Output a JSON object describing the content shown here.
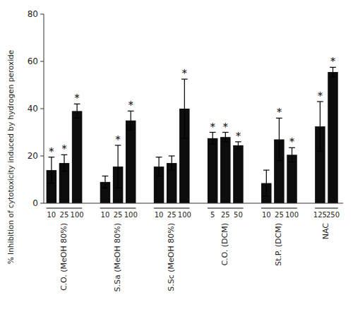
{
  "chart_data": {
    "type": "bar",
    "ylabel": "% Inhibition of cytotoxicity induced by hydrogen peroxide",
    "ylim": [
      0,
      80
    ],
    "yticks": [
      0,
      20,
      40,
      60,
      80
    ],
    "grid": false,
    "color": "#0d0d0d",
    "significance_mark": "*",
    "groups": [
      {
        "label": "C.O. (MeOH 80%)",
        "categories": [
          "10",
          "25",
          "100"
        ],
        "values": [
          14.0,
          17.0,
          39.0
        ],
        "errors": [
          5.5,
          3.5,
          3.0
        ],
        "significant": [
          true,
          true,
          true
        ]
      },
      {
        "label": "S.Sa (MeOH 80%)",
        "categories": [
          "10",
          "25",
          "100"
        ],
        "values": [
          9.0,
          15.5,
          35.0
        ],
        "errors": [
          2.5,
          9.0,
          4.0
        ],
        "significant": [
          false,
          true,
          true
        ]
      },
      {
        "label": "S.Sc (MeOH 80%)",
        "categories": [
          "10",
          "25",
          "100"
        ],
        "values": [
          15.5,
          17.0,
          40.0
        ],
        "errors": [
          4.0,
          3.0,
          12.5
        ],
        "significant": [
          false,
          false,
          true
        ]
      },
      {
        "label": "C.O. (DCM)",
        "categories": [
          "5",
          "25",
          "50"
        ],
        "values": [
          27.5,
          28.0,
          24.5
        ],
        "errors": [
          2.5,
          2.0,
          1.5
        ],
        "significant": [
          true,
          true,
          true
        ]
      },
      {
        "label": "St.P. (DCM)",
        "categories": [
          "10",
          "25",
          "100"
        ],
        "values": [
          8.5,
          27.0,
          20.5
        ],
        "errors": [
          5.5,
          9.0,
          3.0
        ],
        "significant": [
          false,
          true,
          true
        ]
      },
      {
        "label": "NAC",
        "categories": [
          "125",
          "250"
        ],
        "values": [
          32.5,
          55.5
        ],
        "errors": [
          10.5,
          2.0
        ],
        "significant": [
          true,
          true
        ]
      }
    ]
  }
}
